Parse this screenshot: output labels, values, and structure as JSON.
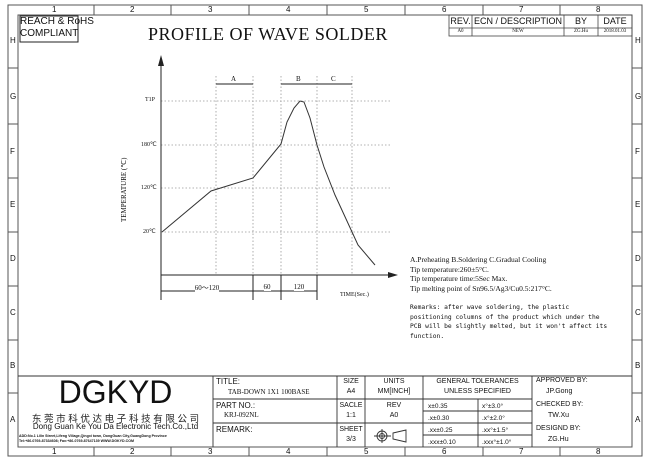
{
  "frame": {
    "columns": [
      "1",
      "2",
      "3",
      "4",
      "5",
      "6",
      "7",
      "8"
    ],
    "rows": [
      "H",
      "G",
      "F",
      "E",
      "D",
      "C",
      "B",
      "A"
    ]
  },
  "compliance": {
    "line1": "REACH & RoHS",
    "line2": "COMPLIANT"
  },
  "drawing_title": "PROFILE OF WAVE SOLDER",
  "revision_table": {
    "headers": [
      "REV.",
      "ECN / DESCRIPTION",
      "BY",
      "DATE"
    ],
    "rows": [
      [
        "A0",
        "NEW",
        "ZG.Hu",
        "2018.01.03"
      ]
    ]
  },
  "chart_data": {
    "type": "line",
    "ylabel": "TEMPERATURE (℃)",
    "xlabel": "TIME(Sec.)",
    "y_ticks": [
      "T1P",
      "180℃",
      "120℃",
      "20℃"
    ],
    "grid": "dotted",
    "zones": [
      {
        "label": "A"
      },
      {
        "label": "B"
      },
      {
        "label": "C"
      }
    ],
    "time_segments": [
      "60～120",
      "60",
      "120"
    ]
  },
  "notes": {
    "line1": "A.Preheating  B.Soldering  C.Gradual Cooling",
    "line2": "Tip temperature:260±5°C.",
    "line3": "Tip temperature time:5Sec Max.",
    "line4": "Tip melting point of Sn96.5/Ag3/Cu0.5:217°C.",
    "remarks": [
      "Remarks: after wave soldering, the plastic",
      "positioning columns of the product  which under the",
      "PCB will be slightly melted, but it won't affect its",
      "function."
    ]
  },
  "title_block": {
    "logo": "DGKYD",
    "company_cn": "东 莞 市 科 优 达 电 子 科 技 有 限 公 司",
    "company_en": "Dong Guan Ke You Da Electronic Tech.Co.,Ltd",
    "address": "ADD:No.1 Lilin Street,Lifeng Village,Qingxi town, DongGuan City,GuangDong Province",
    "tel": "Tel:+86-0769-87334608; Fax:+86-0769-87647139  WWW.DGKYD.COM",
    "title_label": "TITLE:",
    "title_value": "TAB-DOWN 1X1 100BASE",
    "part_label": "PART NO.:",
    "part_value": "KRJ-092NL",
    "remark_label": "REMARK:",
    "size_label": "SIZE",
    "size_value": "A4",
    "units_label": "UNITS",
    "units_value": "MM[INCH]",
    "scale_label": "SACLE",
    "scale_value": "1:1",
    "rev_label": "REV",
    "rev_value": "A0",
    "sheet_label": "SHEET",
    "sheet_value": "3/3",
    "tol_header1": "GENERAL TOLERANCES",
    "tol_header2": "UNLESS SPECIFIED",
    "tolerances": [
      [
        "x±0.35",
        "x°±3.0°"
      ],
      [
        ".x±0.30",
        ".x°±2.0°"
      ],
      [
        ".xx±0.25",
        ".xx°±1.5°"
      ],
      [
        ".xxx±0.10",
        ".xxx°±1.0°"
      ]
    ],
    "approved_label": "APPROVED BY:",
    "approved_value": "JP.Gong",
    "checked_label": "CHECKED BY:",
    "checked_value": "TW.Xu",
    "designed_label": "DESIGND BY:",
    "designed_value": "ZG.Hu"
  }
}
